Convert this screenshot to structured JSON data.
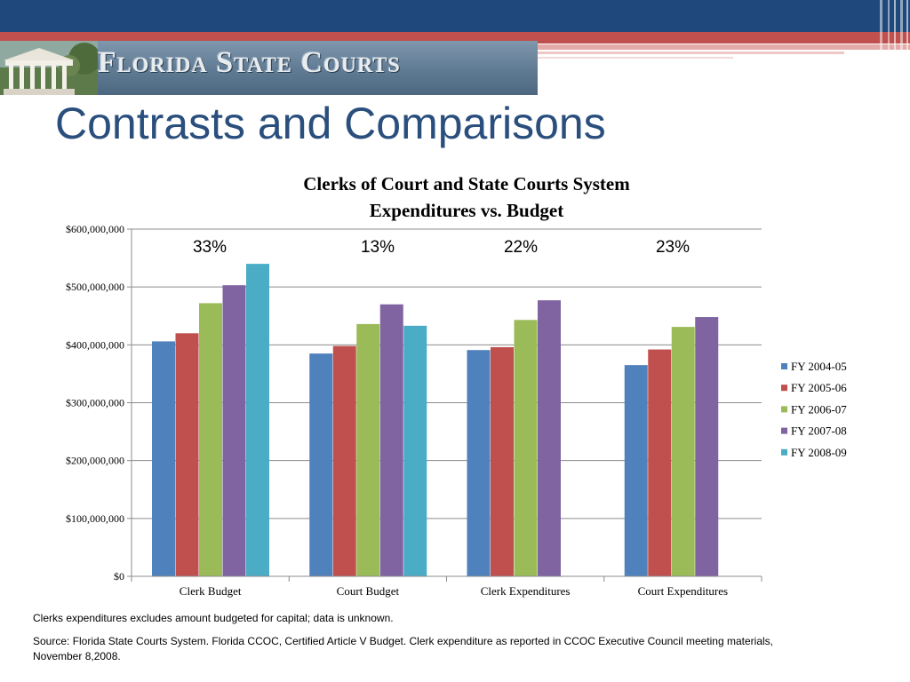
{
  "banner": {
    "text": "Florida State Courts"
  },
  "slide_title": "Contrasts and Comparisons",
  "colors": {
    "header_navy": "#1f497d",
    "header_red": "#c0504d",
    "title_blue": "#2a4f7d",
    "FY 2004-05": "#4f81bd",
    "FY 2005-06": "#c0504d",
    "FY 2006-07": "#9bbb59",
    "FY 2007-08": "#8064a2",
    "FY 2008-09": "#4bacc6"
  },
  "chart_data": {
    "type": "bar",
    "title_line1": "Clerks of Court and State Courts System",
    "title_line2": "Expenditures vs. Budget",
    "categories": [
      "Clerk Budget",
      "Court Budget",
      "Clerk Expenditures",
      "Court Expenditures"
    ],
    "series": [
      {
        "name": "FY 2004-05",
        "values": [
          406000000,
          385000000,
          391000000,
          365000000
        ]
      },
      {
        "name": "FY 2005-06",
        "values": [
          420000000,
          398000000,
          396000000,
          392000000
        ]
      },
      {
        "name": "FY 2006-07",
        "values": [
          472000000,
          436000000,
          443000000,
          431000000
        ]
      },
      {
        "name": "FY 2007-08",
        "values": [
          503000000,
          470000000,
          477000000,
          448000000
        ]
      },
      {
        "name": "FY 2008-09",
        "values": [
          540000000,
          433000000,
          null,
          null
        ]
      }
    ],
    "ylim": [
      0,
      600000000
    ],
    "yticks": [
      "$0",
      "$100,000,000",
      "$200,000,000",
      "$300,000,000",
      "$400,000,000",
      "$500,000,000",
      "$600,000,000"
    ],
    "ytick_values": [
      0,
      100000000,
      200000000,
      300000000,
      400000000,
      500000000,
      600000000
    ],
    "annotations": [
      "33%",
      "13%",
      "22%",
      "23%"
    ],
    "legend_position": "right",
    "grid": true
  },
  "notes": {
    "note1": "Clerks expenditures excludes amount budgeted for capital; data is unknown.",
    "note2_line1": "Source: Florida State Courts System.  Florida CCOC, Certified Article V Budget.  Clerk expenditure as reported in CCOC Executive Council meeting materials,",
    "note2_line2": "November 8,2008."
  }
}
